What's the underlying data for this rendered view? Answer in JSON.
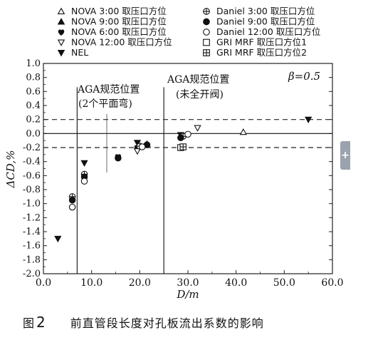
{
  "chart_data": {
    "type": "scatter",
    "xlabel": "D/m",
    "ylabel": "ΔCD,%",
    "xlim": [
      0,
      60
    ],
    "ylim": [
      -2.0,
      1.0
    ],
    "xticks": [
      "0.0",
      "10.0",
      "20.0",
      "30.0",
      "40.0",
      "50.0",
      "60.0"
    ],
    "yticks": [
      "1.0",
      "0.8",
      "0.6",
      "0.4",
      "0.2",
      "0.0",
      "-0.2",
      "-0.4",
      "-0.6",
      "-0.8",
      "-1.0",
      "-1.2",
      "-1.4",
      "-1.6",
      "-1.8",
      "-2.0"
    ],
    "limit_lines": [
      0.2,
      -0.2
    ],
    "vertical_lines": [
      7,
      25
    ],
    "annotations": {
      "aga1_line1": "AGA规范位置",
      "aga1_line2": "(2个平面弯)",
      "aga2_line1": "AGA规范位置",
      "aga2_line2": "(未全开阀)",
      "beta": "β=0.5"
    },
    "legend_placement": "top",
    "series": [
      {
        "name": "NOVA 3:00  取压口方位",
        "marker": "tri-up-open",
        "points": [
          [
            41.5,
            0.02
          ]
        ]
      },
      {
        "name": "NOVA 9:00  取压口方位",
        "marker": "tri-up-filled",
        "points": [
          [
            21.5,
            -0.15
          ]
        ]
      },
      {
        "name": "NOVA 6:00  取压口方位",
        "marker": "heart",
        "points": [
          [
            15.5,
            -0.33
          ],
          [
            19.5,
            -0.2
          ]
        ]
      },
      {
        "name": "NOVA 12:00 取压口方位",
        "marker": "tri-down-open",
        "points": [
          [
            19.5,
            -0.25
          ],
          [
            32,
            0.08
          ]
        ]
      },
      {
        "name": "NEL",
        "marker": "tri-down-filled",
        "points": [
          [
            3,
            -1.5
          ],
          [
            8.5,
            -0.42
          ],
          [
            19.5,
            -0.13
          ],
          [
            28.5,
            -0.02
          ],
          [
            55,
            0.2
          ]
        ]
      },
      {
        "name": "Daniel 3:00  取压口方位",
        "marker": "circle-plus",
        "points": [
          [
            6,
            -0.9
          ],
          [
            8.5,
            -0.58
          ],
          [
            20,
            -0.18
          ],
          [
            29,
            -0.04
          ]
        ]
      },
      {
        "name": "Daniel 9:00  取压口方位",
        "marker": "circle-filled",
        "points": [
          [
            6,
            -0.95
          ],
          [
            8.5,
            -0.62
          ],
          [
            15.5,
            -0.35
          ],
          [
            21.5,
            -0.16
          ],
          [
            28.5,
            -0.06
          ]
        ]
      },
      {
        "name": "Daniel 12:00 取压口方位",
        "marker": "circle-open",
        "points": [
          [
            6,
            -1.05
          ],
          [
            8.5,
            -0.68
          ],
          [
            20.5,
            -0.19
          ],
          [
            30,
            -0.01
          ]
        ]
      },
      {
        "name": "GRI MRF  取压口方位1",
        "marker": "square-open",
        "points": [
          [
            28.5,
            -0.2
          ]
        ]
      },
      {
        "name": "GRI MRF  取压口方位2",
        "marker": "square-plus",
        "points": [
          [
            29,
            -0.19
          ]
        ]
      }
    ]
  },
  "caption": {
    "prefix": "图",
    "number": "2",
    "text": "前直管段长度对孔板流出系数的影响"
  }
}
